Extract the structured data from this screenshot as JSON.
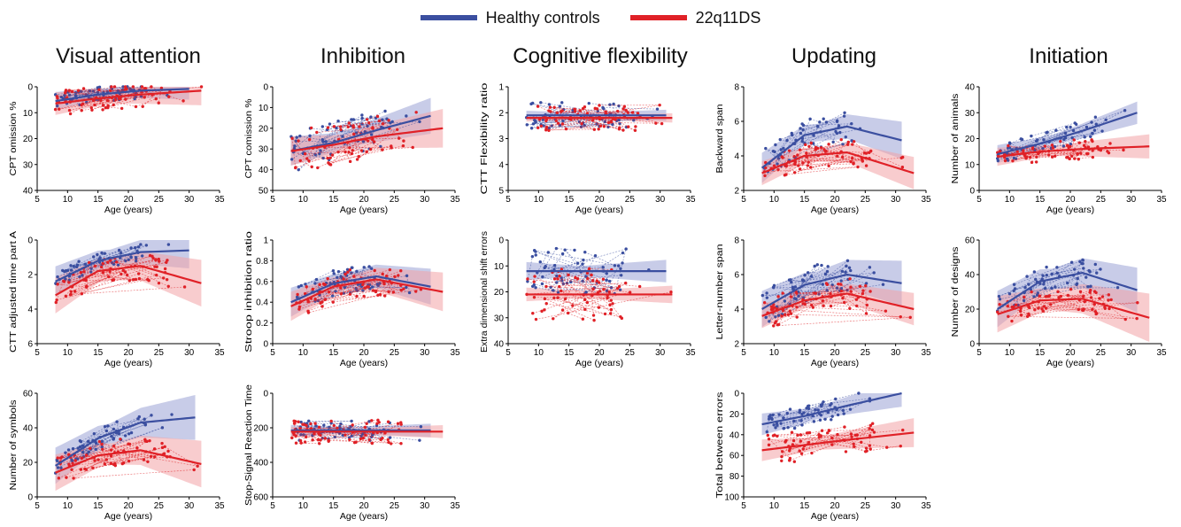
{
  "legend": [
    {
      "label": "Healthy controls",
      "color": "#3b4fa0"
    },
    {
      "label": "22q11DS",
      "color": "#e02127"
    }
  ],
  "colors": {
    "hc": "#3b4fa0",
    "q22": "#e02127",
    "hc_band": "#9aa3d6",
    "q22_band": "#f2a3a5"
  },
  "columns": [
    "Visual attention",
    "Inhibition",
    "Cognitive flexibility",
    "Updating",
    "Initiation"
  ],
  "chart_data": [
    {
      "id": "va1",
      "type": "scatter",
      "title": "",
      "xlabel": "Age (years)",
      "ylabel": "CPT omission %",
      "xlim": [
        5,
        35
      ],
      "ylim": [
        0,
        40
      ],
      "y_reversed": true,
      "xticks": [
        5,
        10,
        15,
        20,
        25,
        30,
        35
      ],
      "yticks": [
        0,
        10,
        20,
        30,
        40
      ],
      "series": [
        {
          "name": "Healthy controls",
          "fit": [
            [
              8,
              5.5
            ],
            [
              15,
              3
            ],
            [
              22,
              1.5
            ],
            [
              30,
              0.8
            ]
          ],
          "band": 2
        },
        {
          "name": "22q11DS",
          "fit": [
            [
              8,
              6.5
            ],
            [
              15,
              4.5
            ],
            [
              22,
              3
            ],
            [
              32,
              1.5
            ]
          ],
          "band": 2.5
        }
      ],
      "hc_pts": {
        "n": 60,
        "x": [
          8,
          27
        ],
        "yfn": "fit",
        "spread": 3
      },
      "q_pts": {
        "n": 70,
        "x": [
          8,
          33
        ],
        "yfn": "fit",
        "spread": 5
      }
    },
    {
      "id": "va2",
      "type": "scatter",
      "xlabel": "Age (years)",
      "ylabel": "CTT adjusted time part A",
      "xlim": [
        5,
        35
      ],
      "ylim": [
        0,
        6
      ],
      "y_reversed": true,
      "xticks": [
        5,
        10,
        15,
        20,
        25,
        30,
        35
      ],
      "yticks": [
        0,
        2,
        4,
        6
      ],
      "series": [
        {
          "name": "Healthy controls",
          "fit": [
            [
              8,
              2.4
            ],
            [
              15,
              1.2
            ],
            [
              22,
              0.7
            ],
            [
              30,
              0.6
            ]
          ],
          "band": 0.5
        },
        {
          "name": "22q11DS",
          "fit": [
            [
              8,
              3.2
            ],
            [
              15,
              1.8
            ],
            [
              22,
              1.5
            ],
            [
              32,
              2.5
            ]
          ],
          "band": 0.6
        }
      ],
      "hc_pts": {
        "n": 60,
        "x": [
          8,
          27
        ],
        "spread": 0.5
      },
      "q_pts": {
        "n": 70,
        "x": [
          8,
          33
        ],
        "spread": 0.8
      }
    },
    {
      "id": "va3",
      "type": "scatter",
      "xlabel": "Age (years)",
      "ylabel": "Number of symbols",
      "xlim": [
        5,
        35
      ],
      "ylim": [
        0,
        60
      ],
      "y_reversed": false,
      "xticks": [
        5,
        10,
        15,
        20,
        25,
        30,
        35
      ],
      "yticks": [
        0,
        20,
        40,
        60
      ],
      "series": [
        {
          "name": "Healthy controls",
          "fit": [
            [
              8,
              18
            ],
            [
              15,
              34
            ],
            [
              22,
              43
            ],
            [
              31,
              46
            ]
          ],
          "band": 6
        },
        {
          "name": "22q11DS",
          "fit": [
            [
              8,
              14
            ],
            [
              15,
              24
            ],
            [
              22,
              27
            ],
            [
              32,
              19
            ]
          ],
          "band": 6
        }
      ],
      "hc_pts": {
        "n": 60,
        "x": [
          8,
          28
        ],
        "spread": 6
      },
      "q_pts": {
        "n": 70,
        "x": [
          8,
          33
        ],
        "spread": 8
      }
    },
    {
      "id": "in1",
      "type": "scatter",
      "xlabel": "Age (years)",
      "ylabel": "CPT comission %",
      "xlim": [
        5,
        35
      ],
      "ylim": [
        0,
        50
      ],
      "y_reversed": true,
      "xticks": [
        5,
        10,
        15,
        20,
        25,
        30,
        35
      ],
      "yticks": [
        0,
        10,
        20,
        30,
        40,
        50
      ],
      "series": [
        {
          "name": "Healthy controls",
          "fit": [
            [
              8,
              31
            ],
            [
              15,
              27
            ],
            [
              22,
              21
            ],
            [
              31,
              14
            ]
          ],
          "band": 4
        },
        {
          "name": "22q11DS",
          "fit": [
            [
              8,
              31
            ],
            [
              15,
              28
            ],
            [
              22,
              24
            ],
            [
              33,
              20
            ]
          ],
          "band": 4
        }
      ],
      "hc_pts": {
        "n": 60,
        "x": [
          8,
          30
        ],
        "spread": 10
      },
      "q_pts": {
        "n": 70,
        "x": [
          8,
          33
        ],
        "spread": 10
      }
    },
    {
      "id": "in2",
      "type": "scatter",
      "xlabel": "Age (years)",
      "ylabel": "Stroop inhibition ratio",
      "xlim": [
        5,
        35
      ],
      "ylim": [
        0,
        1
      ],
      "y_reversed": false,
      "xticks": [
        5,
        10,
        15,
        20,
        25,
        30,
        35
      ],
      "yticks": [
        0,
        0.2,
        0.4,
        0.6,
        0.8,
        1
      ],
      "series": [
        {
          "name": "Healthy controls",
          "fit": [
            [
              8,
              0.4
            ],
            [
              15,
              0.58
            ],
            [
              22,
              0.65
            ],
            [
              31,
              0.55
            ]
          ],
          "band": 0.08
        },
        {
          "name": "22q11DS",
          "fit": [
            [
              8,
              0.36
            ],
            [
              15,
              0.55
            ],
            [
              22,
              0.62
            ],
            [
              33,
              0.5
            ]
          ],
          "band": 0.08
        }
      ],
      "hc_pts": {
        "n": 60,
        "x": [
          8,
          28
        ],
        "spread": 0.13
      },
      "q_pts": {
        "n": 70,
        "x": [
          8,
          33
        ],
        "spread": 0.15
      }
    },
    {
      "id": "in3",
      "type": "scatter",
      "xlabel": "Age (years)",
      "ylabel": "Stop-Signal Reaction Time",
      "xlim": [
        5,
        35
      ],
      "ylim": [
        0,
        600
      ],
      "y_reversed": true,
      "xticks": [
        5,
        10,
        15,
        20,
        25,
        30,
        35
      ],
      "yticks": [
        0,
        200,
        400,
        600
      ],
      "series": [
        {
          "name": "Healthy controls",
          "fit": [
            [
              8,
              215
            ],
            [
              15,
              215
            ],
            [
              22,
              215
            ],
            [
              31,
              215
            ]
          ],
          "band": 18
        },
        {
          "name": "22q11DS",
          "fit": [
            [
              8,
              222
            ],
            [
              15,
              222
            ],
            [
              22,
              222
            ],
            [
              33,
              222
            ]
          ],
          "band": 16
        }
      ],
      "hc_pts": {
        "n": 60,
        "x": [
          8,
          30
        ],
        "spread": 60
      },
      "q_pts": {
        "n": 70,
        "x": [
          8,
          33
        ],
        "spread": 70
      }
    },
    {
      "id": "cf1",
      "type": "scatter",
      "xlabel": "Age (years)",
      "ylabel": "CTT Flexibility ratio",
      "xlim": [
        5,
        35
      ],
      "ylim": [
        1,
        5
      ],
      "y_reversed": true,
      "xticks": [
        5,
        10,
        15,
        20,
        25,
        30,
        35
      ],
      "yticks": [
        1,
        2,
        3,
        4,
        5
      ],
      "series": [
        {
          "name": "Healthy controls",
          "fit": [
            [
              8,
              2.1
            ],
            [
              15,
              2.1
            ],
            [
              22,
              2.1
            ],
            [
              31,
              2.1
            ]
          ],
          "band": 0.1
        },
        {
          "name": "22q11DS",
          "fit": [
            [
              8,
              2.2
            ],
            [
              15,
              2.2
            ],
            [
              22,
              2.2
            ],
            [
              32,
              2.2
            ]
          ],
          "band": 0.08
        }
      ],
      "hc_pts": {
        "n": 60,
        "x": [
          8,
          30
        ],
        "spread": 0.5
      },
      "q_pts": {
        "n": 70,
        "x": [
          8,
          32
        ],
        "spread": 0.5
      }
    },
    {
      "id": "cf2",
      "type": "scatter",
      "xlabel": "Age (years)",
      "ylabel": "Extra dimensional shift errors",
      "xlim": [
        5,
        35
      ],
      "ylim": [
        0,
        40
      ],
      "y_reversed": true,
      "xticks": [
        5,
        10,
        15,
        20,
        25,
        30,
        35
      ],
      "yticks": [
        0,
        10,
        20,
        30,
        40
      ],
      "series": [
        {
          "name": "Healthy controls",
          "fit": [
            [
              8,
              12
            ],
            [
              15,
              12
            ],
            [
              22,
              12
            ],
            [
              31,
              12
            ]
          ],
          "band": 2
        },
        {
          "name": "22q11DS",
          "fit": [
            [
              8,
              21
            ],
            [
              15,
              21
            ],
            [
              22,
              21
            ],
            [
              32,
              21
            ]
          ],
          "band": 1.5
        }
      ],
      "hc_pts": {
        "n": 60,
        "x": [
          8,
          30
        ],
        "spread": 9
      },
      "q_pts": {
        "n": 70,
        "x": [
          8,
          32
        ],
        "spread": 10
      }
    },
    {
      "id": "up1",
      "type": "scatter",
      "xlabel": "Age (years)",
      "ylabel": "Backward span",
      "xlim": [
        5,
        35
      ],
      "ylim": [
        2,
        8
      ],
      "y_reversed": false,
      "xticks": [
        5,
        10,
        15,
        20,
        25,
        30,
        35
      ],
      "yticks": [
        2,
        4,
        6,
        8
      ],
      "series": [
        {
          "name": "Healthy controls",
          "fit": [
            [
              8,
              3.3
            ],
            [
              15,
              5.2
            ],
            [
              22,
              5.7
            ],
            [
              31,
              4.9
            ]
          ],
          "band": 0.5
        },
        {
          "name": "22q11DS",
          "fit": [
            [
              8,
              3.0
            ],
            [
              15,
              4.0
            ],
            [
              22,
              4.2
            ],
            [
              33,
              3.0
            ]
          ],
          "band": 0.4
        }
      ],
      "hc_pts": {
        "n": 60,
        "x": [
          8,
          28
        ],
        "spread": 1.0
      },
      "q_pts": {
        "n": 70,
        "x": [
          8,
          33
        ],
        "spread": 0.8
      }
    },
    {
      "id": "up2",
      "type": "scatter",
      "xlabel": "Age (years)",
      "ylabel": "Letter-number span",
      "xlim": [
        5,
        35
      ],
      "ylim": [
        2,
        8
      ],
      "y_reversed": false,
      "xticks": [
        5,
        10,
        15,
        20,
        25,
        30,
        35
      ],
      "yticks": [
        2,
        4,
        6,
        8
      ],
      "series": [
        {
          "name": "Healthy controls",
          "fit": [
            [
              8,
              4.0
            ],
            [
              15,
              5.4
            ],
            [
              22,
              6.0
            ],
            [
              31,
              5.5
            ]
          ],
          "band": 0.6
        },
        {
          "name": "22q11DS",
          "fit": [
            [
              8,
              3.6
            ],
            [
              15,
              4.5
            ],
            [
              22,
              4.9
            ],
            [
              33,
              4.0
            ]
          ],
          "band": 0.4
        }
      ],
      "hc_pts": {
        "n": 60,
        "x": [
          8,
          28
        ],
        "spread": 1.0
      },
      "q_pts": {
        "n": 70,
        "x": [
          8,
          33
        ],
        "spread": 0.9
      }
    },
    {
      "id": "up3",
      "type": "scatter",
      "xlabel": "Age (years)",
      "ylabel": "Total between errors",
      "xlim": [
        5,
        35
      ],
      "ylim": [
        0,
        100
      ],
      "y_reversed": true,
      "xticks": [
        5,
        10,
        15,
        20,
        25,
        30,
        35
      ],
      "yticks": [
        0,
        20,
        40,
        60,
        80,
        100
      ],
      "series": [
        {
          "name": "Healthy controls",
          "fit": [
            [
              8,
              30
            ],
            [
              15,
              22
            ],
            [
              22,
              12
            ],
            [
              31,
              0
            ]
          ],
          "band": 6
        },
        {
          "name": "22q11DS",
          "fit": [
            [
              8,
              55
            ],
            [
              15,
              50
            ],
            [
              22,
              45
            ],
            [
              33,
              38
            ]
          ],
          "band": 6
        }
      ],
      "hc_pts": {
        "n": 60,
        "x": [
          8,
          26
        ],
        "spread": 10
      },
      "q_pts": {
        "n": 70,
        "x": [
          8,
          33
        ],
        "spread": 15
      }
    },
    {
      "id": "it1",
      "type": "scatter",
      "xlabel": "Age (years)",
      "ylabel": "Number of animals",
      "xlim": [
        5,
        35
      ],
      "ylim": [
        0,
        40
      ],
      "y_reversed": false,
      "xticks": [
        5,
        10,
        15,
        20,
        25,
        30,
        35
      ],
      "yticks": [
        0,
        10,
        20,
        30,
        40
      ],
      "series": [
        {
          "name": "Healthy controls",
          "fit": [
            [
              8,
              14
            ],
            [
              15,
              18
            ],
            [
              22,
              23
            ],
            [
              31,
              30
            ]
          ],
          "band": 2
        },
        {
          "name": "22q11DS",
          "fit": [
            [
              8,
              13
            ],
            [
              15,
              15
            ],
            [
              22,
              16
            ],
            [
              33,
              17
            ]
          ],
          "band": 2
        }
      ],
      "hc_pts": {
        "n": 60,
        "x": [
          8,
          31
        ],
        "spread": 4
      },
      "q_pts": {
        "n": 70,
        "x": [
          8,
          33
        ],
        "spread": 4
      }
    },
    {
      "id": "it2",
      "type": "scatter",
      "xlabel": "Age (years)",
      "ylabel": "Number of designs",
      "xlim": [
        5,
        35
      ],
      "ylim": [
        0,
        60
      ],
      "y_reversed": false,
      "xticks": [
        5,
        10,
        15,
        20,
        25,
        30,
        35
      ],
      "yticks": [
        0,
        20,
        40,
        60
      ],
      "series": [
        {
          "name": "Healthy controls",
          "fit": [
            [
              8,
              20
            ],
            [
              15,
              36
            ],
            [
              22,
              41
            ],
            [
              31,
              31
            ]
          ],
          "band": 6
        },
        {
          "name": "22q11DS",
          "fit": [
            [
              8,
              17
            ],
            [
              15,
              25
            ],
            [
              22,
              26
            ],
            [
              33,
              15
            ]
          ],
          "band": 6
        }
      ],
      "hc_pts": {
        "n": 60,
        "x": [
          8,
          30
        ],
        "spread": 8
      },
      "q_pts": {
        "n": 70,
        "x": [
          8,
          33
        ],
        "spread": 7
      }
    }
  ]
}
